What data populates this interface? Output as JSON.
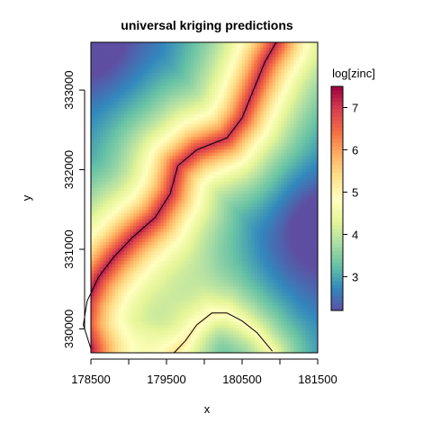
{
  "chart_data": {
    "type": "heatmap",
    "title": "universal kriging predictions",
    "xlabel": "x",
    "ylabel": "y",
    "xlim": [
      178500,
      181500
    ],
    "ylim": [
      329700,
      333600
    ],
    "x_ticks": [
      178500,
      179000,
      179500,
      180000,
      180500,
      181000,
      181500
    ],
    "x_tick_labels": [
      "178500",
      "179500",
      "180500",
      "181500"
    ],
    "y_ticks": [
      330000,
      331000,
      332000,
      333000
    ],
    "y_tick_labels": [
      "330000",
      "331000",
      "332000",
      "333000"
    ],
    "colorbar": {
      "title": "log[zinc]",
      "range": [
        2.2,
        7.5
      ],
      "ticks": [
        3,
        4,
        5,
        6,
        7
      ],
      "tick_labels": [
        "3",
        "4",
        "5",
        "6",
        "7"
      ],
      "colors": [
        "#5E4FA2",
        "#3288BD",
        "#66C2A5",
        "#ABDDA4",
        "#E6F598",
        "#FFFFBF",
        "#FEE08B",
        "#FDAE61",
        "#F46D43",
        "#D53E4F",
        "#9E0142"
      ]
    },
    "river_outline": [
      [
        180950,
        333600
      ],
      [
        180800,
        333350
      ],
      [
        180650,
        333000
      ],
      [
        180500,
        332650
      ],
      [
        180300,
        332400
      ],
      [
        179900,
        332250
      ],
      [
        179650,
        332050
      ],
      [
        179550,
        331700
      ],
      [
        179350,
        331400
      ],
      [
        179050,
        331150
      ],
      [
        178800,
        330900
      ],
      [
        178600,
        330650
      ],
      [
        178450,
        330350
      ],
      [
        178400,
        330050
      ],
      [
        178500,
        329750
      ]
    ],
    "inner_outline": [
      [
        179600,
        329700
      ],
      [
        179750,
        329850
      ],
      [
        179900,
        330050
      ],
      [
        180100,
        330200
      ],
      [
        180300,
        330200
      ],
      [
        180500,
        330100
      ],
      [
        180700,
        329950
      ],
      [
        180900,
        329720
      ]
    ]
  }
}
